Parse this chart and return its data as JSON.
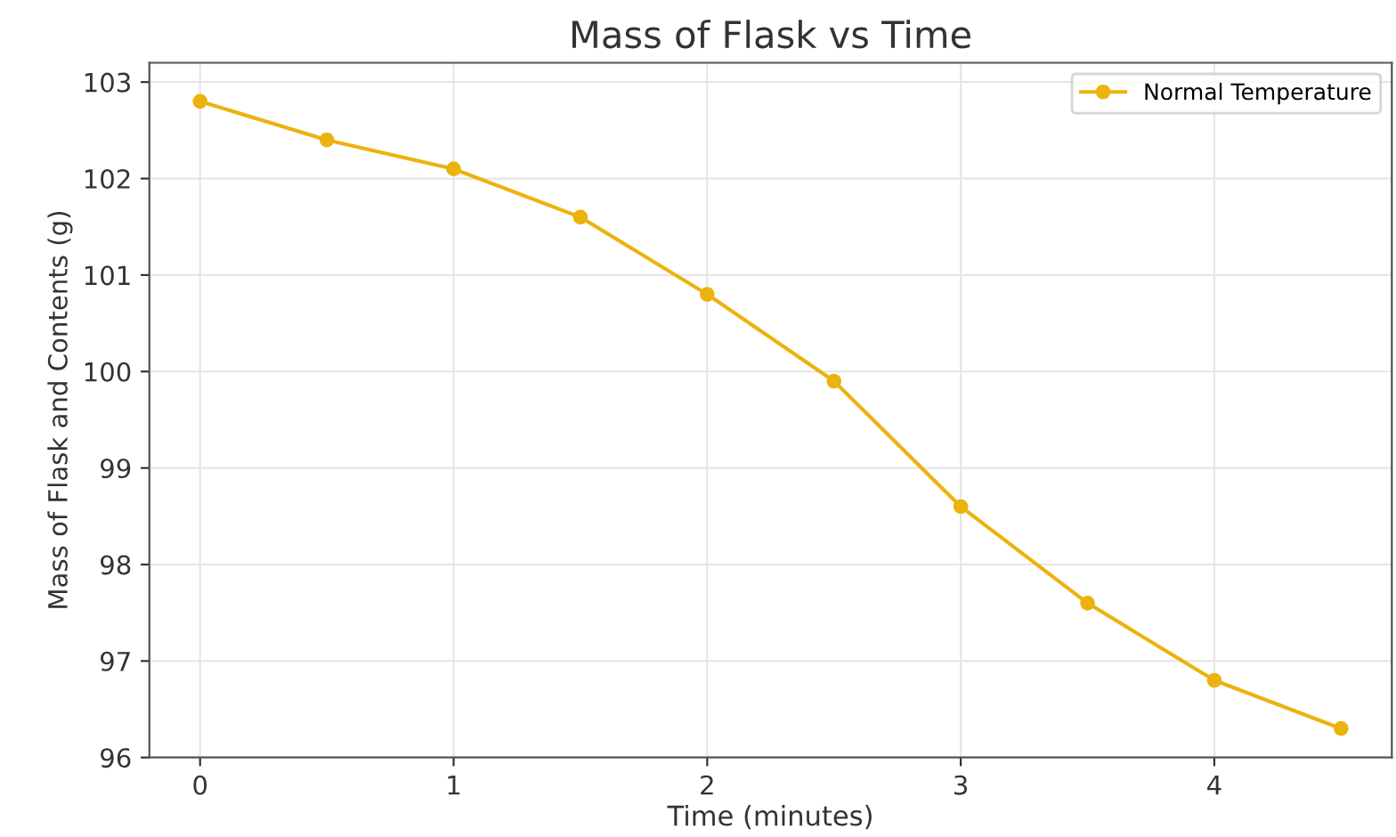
{
  "chart_data": {
    "type": "line",
    "title": "Mass of Flask vs Time",
    "xlabel": "Time (minutes)",
    "ylabel": "Mass of Flask and Contents (g)",
    "x": [
      0,
      0.5,
      1,
      1.5,
      2,
      2.5,
      3,
      3.5,
      4,
      4.5
    ],
    "series": [
      {
        "name": "Normal Temperature",
        "color": "#ecb20e",
        "values": [
          102.8,
          102.4,
          102.1,
          101.6,
          100.8,
          99.9,
          98.6,
          97.6,
          96.8,
          96.3
        ]
      }
    ],
    "xlim": [
      -0.2,
      4.7
    ],
    "ylim": [
      96,
      103.2
    ],
    "xticks": [
      0,
      1,
      2,
      3,
      4
    ],
    "yticks": [
      96,
      97,
      98,
      99,
      100,
      101,
      102,
      103
    ],
    "grid": true,
    "legend": "top right",
    "marker": "circle",
    "line_style": "solid"
  }
}
